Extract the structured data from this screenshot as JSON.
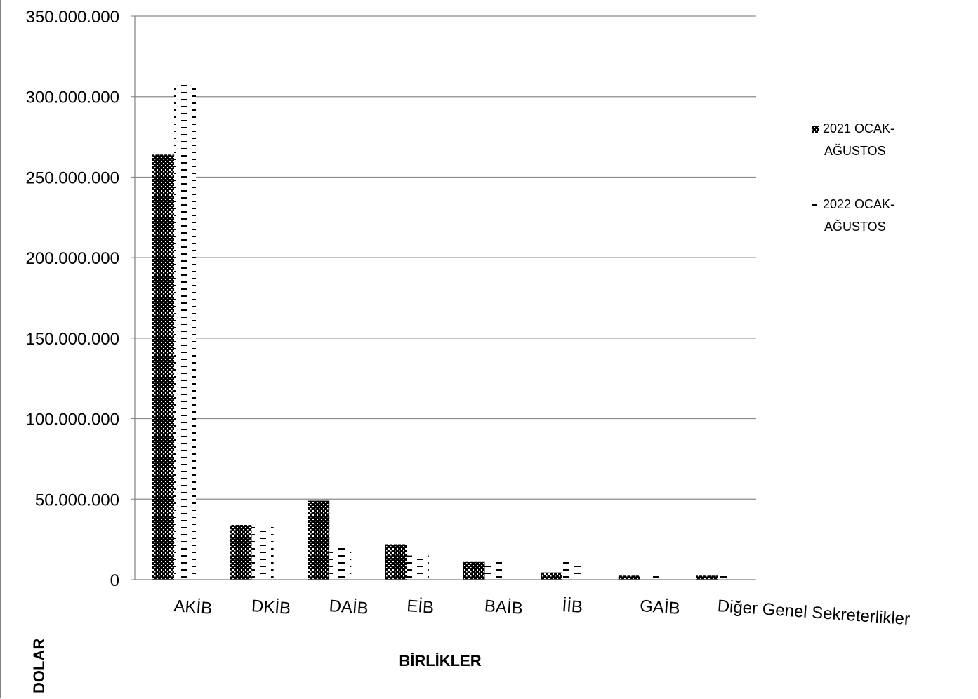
{
  "chart_data": {
    "type": "bar",
    "title": "",
    "xlabel": "BİRLİKLER",
    "ylabel": "DOLAR",
    "ylim": [
      0,
      350000000
    ],
    "yticks": [
      0,
      50000000,
      100000000,
      150000000,
      200000000,
      250000000,
      300000000,
      350000000
    ],
    "ytick_labels": [
      "0",
      "50.000.000",
      "100.000.000",
      "150.000.000",
      "200.000.000",
      "250.000.000",
      "300.000.000",
      "350.000.000"
    ],
    "grid": true,
    "legend_position": "right",
    "categories": [
      "AKİB",
      "DKİB",
      "DAİB",
      "EİB",
      "BAİB",
      "İİB",
      "GAİB",
      "Diğer Genel Sekreterlikler"
    ],
    "series": [
      {
        "name": "2021 OCAK-AĞUSTOS",
        "name_lines": [
          "2021 OCAK-",
          "AĞUSTOS"
        ],
        "pattern": "crosshatch",
        "values": [
          264000000,
          34000000,
          49000000,
          22000000,
          11000000,
          4500000,
          2500000,
          2500000
        ]
      },
      {
        "name": "2022 OCAK-AĞUSTOS",
        "name_lines": [
          "2022 OCAK-",
          "AĞUSTOS"
        ],
        "pattern": "dashes",
        "values": [
          308000000,
          33000000,
          20000000,
          15000000,
          11000000,
          11000000,
          2500000,
          2500000
        ]
      }
    ],
    "colors": {
      "grid": "#8c8c8c",
      "axis": "#7f7f7f",
      "ink": "#000000"
    }
  }
}
